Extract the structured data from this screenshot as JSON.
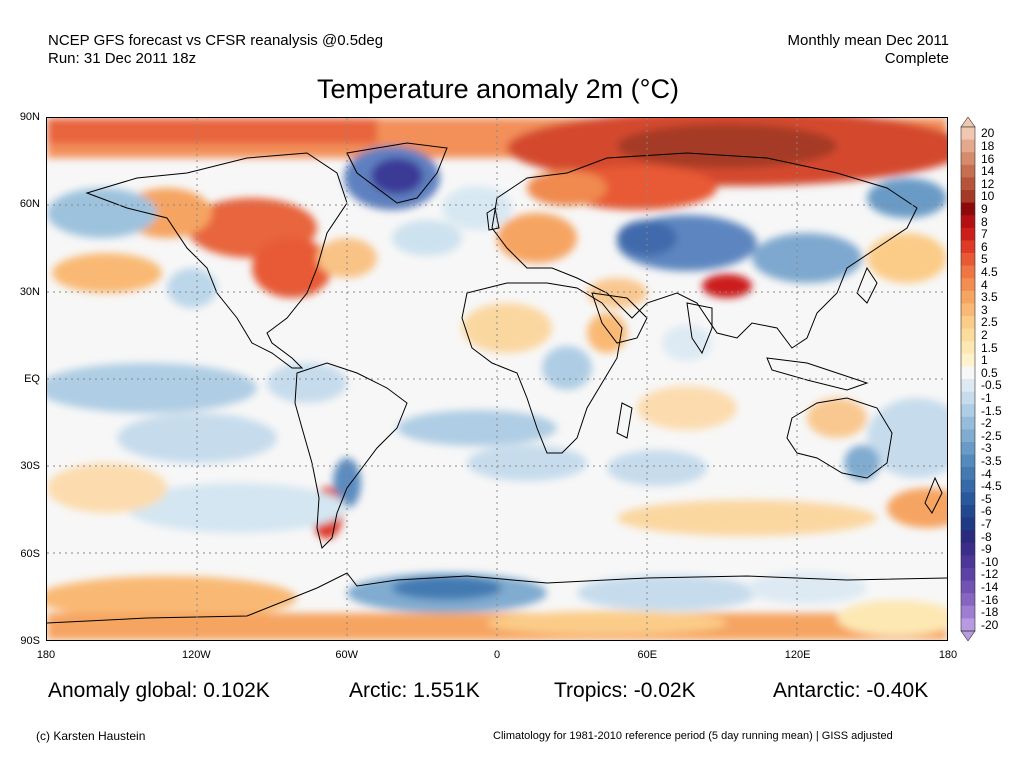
{
  "header": {
    "left_line1": "NCEP GFS forecast vs CFSR reanalysis @0.5deg",
    "left_line2": "Run: 31 Dec 2011 18z",
    "right_line1": "Monthly mean Dec 2011",
    "right_line2": "Complete"
  },
  "title": "Temperature anomaly 2m (°C)",
  "axes": {
    "lat_labels": [
      "90N",
      "60N",
      "30N",
      "EQ",
      "30S",
      "60S",
      "90S"
    ],
    "lon_labels": [
      "180",
      "120W",
      "60W",
      "0",
      "60E",
      "120E",
      "180"
    ]
  },
  "colorbar": {
    "labels": [
      "20",
      "18",
      "16",
      "14",
      "12",
      "10",
      "9",
      "8",
      "7",
      "6",
      "5",
      "4.5",
      "4",
      "3.5",
      "3",
      "2.5",
      "2",
      "1.5",
      "1",
      "0.5",
      "-0.5",
      "-1",
      "-1.5",
      "-2",
      "-2.5",
      "-3",
      "-3.5",
      "-4",
      "-4.5",
      "-5",
      "-6",
      "-7",
      "-8",
      "-9",
      "-10",
      "-12",
      "-14",
      "-16",
      "-18",
      "-20"
    ],
    "colors": [
      "#f2c7b0",
      "#e4a98c",
      "#d58c6c",
      "#c56f50",
      "#b5543a",
      "#a53a26",
      "#8c0a0a",
      "#b40f12",
      "#cc1f1c",
      "#de3a26",
      "#e85a34",
      "#ef7642",
      "#f38d52",
      "#f6a462",
      "#f9b974",
      "#fbcc88",
      "#fcdc9c",
      "#fde8b4",
      "#fef2cc",
      "#f7f7f7",
      "#ddeaf3",
      "#c6dcec",
      "#afcde4",
      "#96bcda",
      "#80acd0",
      "#6a9bc6",
      "#558abc",
      "#437ab2",
      "#3569a7",
      "#2a589c",
      "#234890",
      "#1f3984",
      "#2a2a7e",
      "#3b2e8a",
      "#4c3696",
      "#5e41a4",
      "#7252b3",
      "#8766c2",
      "#9e7ed1",
      "#b79ae0"
    ]
  },
  "stats": {
    "global": "Anomaly global: 0.102K",
    "arctic": "Arctic: 1.551K",
    "tropics": "Tropics: -0.02K",
    "antarctic": "Antarctic: -0.40K"
  },
  "footer": {
    "left": "(c) Karsten Haustein",
    "right": "Climatology for 1981-2010 reference period (5 day running mean) | GISS adjusted"
  }
}
